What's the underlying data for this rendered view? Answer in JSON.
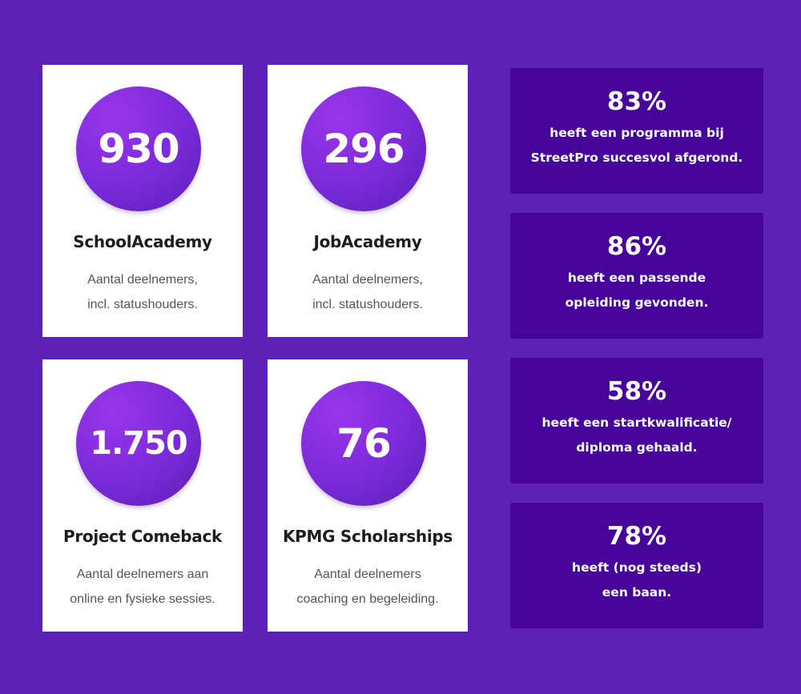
{
  "programs": [
    {
      "value": "930",
      "title": "SchoolAcademy",
      "desc": [
        "Aantal deelnemers,",
        "incl. statushouders."
      ]
    },
    {
      "value": "296",
      "title": "JobAcademy",
      "desc": [
        "Aantal deelnemers,",
        "incl. statushouders."
      ]
    },
    {
      "value": "1.750",
      "title": "Project Comeback",
      "desc": [
        "Aantal deelnemers aan",
        "online en fysieke sessies."
      ]
    },
    {
      "value": "76",
      "title": "KPMG Scholarships",
      "desc": [
        "Aantal deelnemers",
        "coaching en begeleiding."
      ]
    }
  ],
  "stats": [
    {
      "pct": "83%",
      "lines": [
        "heeft een programma bij",
        "StreetPro succesvol afgerond."
      ]
    },
    {
      "pct": "86%",
      "lines": [
        "heeft een passende",
        "opleiding gevonden."
      ]
    },
    {
      "pct": "58%",
      "lines": [
        "heeft een startkwalificatie/",
        "diploma gehaald."
      ]
    },
    {
      "pct": "78%",
      "lines": [
        "heeft (nog steeds)",
        "een baan."
      ]
    }
  ],
  "colors": {
    "background": "#5c22b6",
    "stat_box": "#46049a",
    "circle_accent": "#8a2fe3"
  }
}
